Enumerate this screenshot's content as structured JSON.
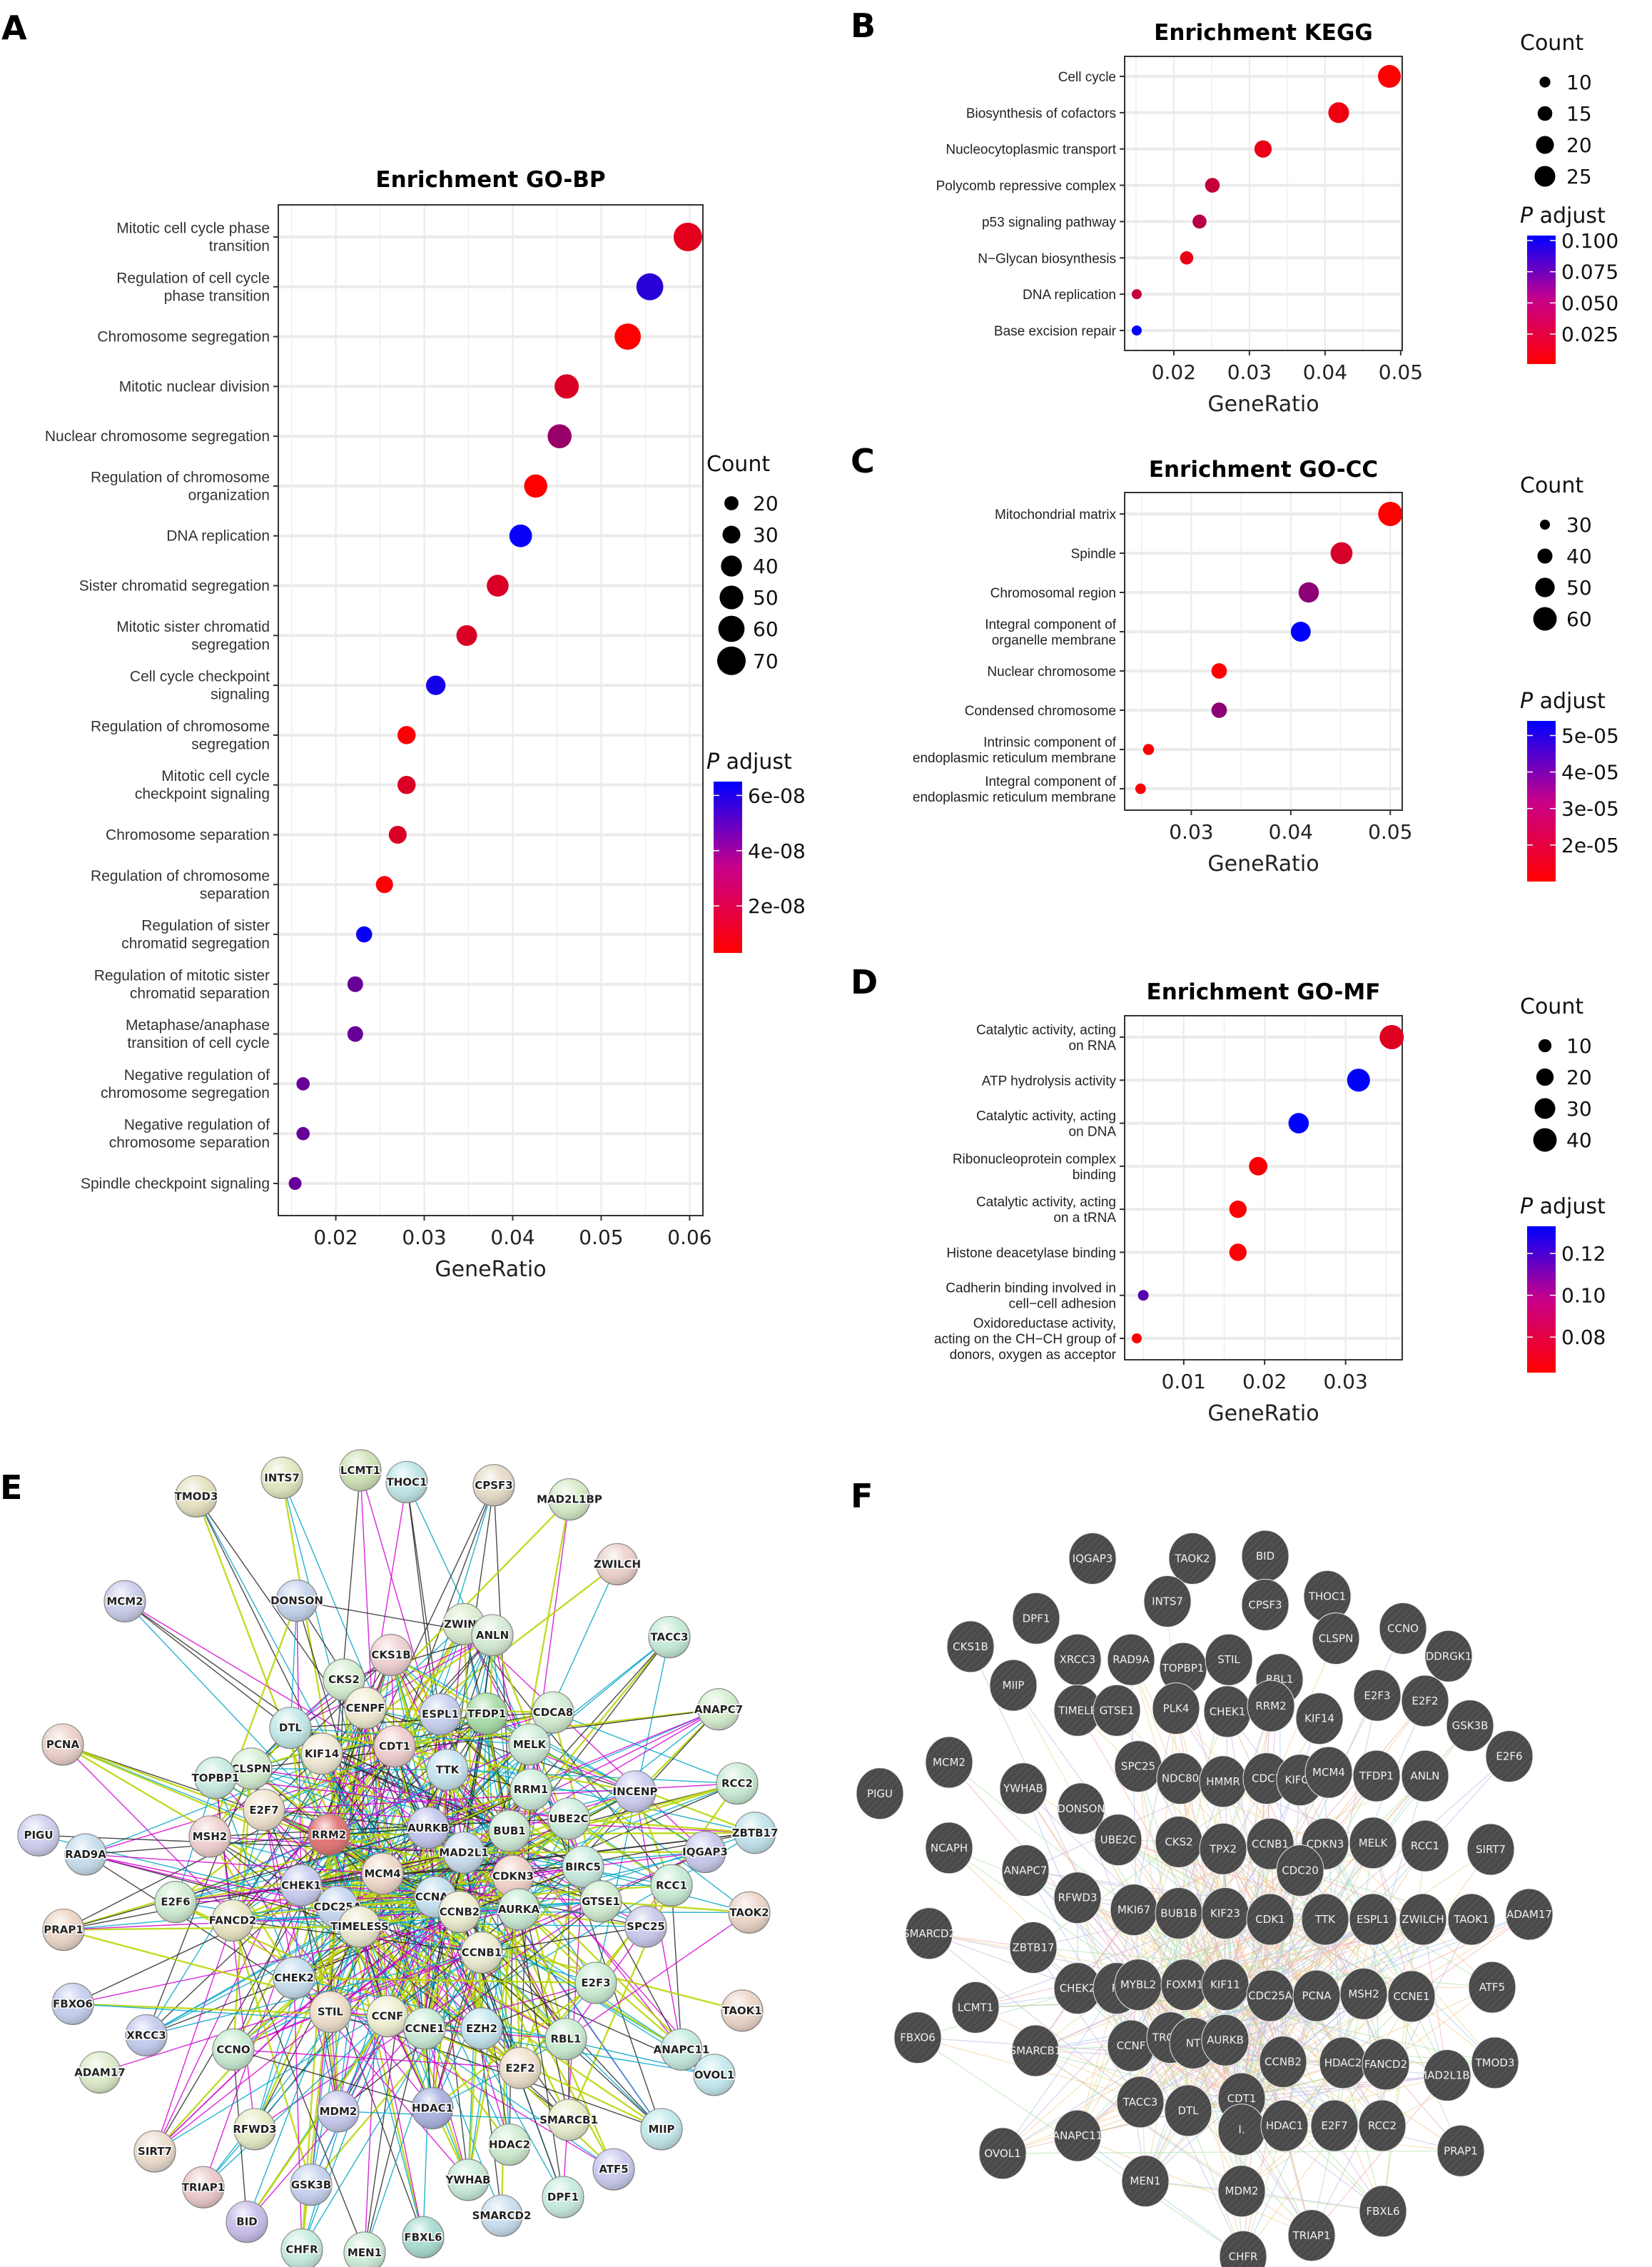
{
  "figure": {
    "panels": [
      "A",
      "B",
      "C",
      "D",
      "E",
      "F"
    ]
  },
  "chart_data": [
    {
      "id": "A",
      "type": "scatter",
      "title": "Enrichment GO-BP",
      "xlabel": "GeneRatio",
      "ylabel": "",
      "xlim": [
        0.0135,
        0.0615
      ],
      "xticks": [
        "0.02",
        "0.03",
        "0.04",
        "0.05",
        "0.06"
      ],
      "xtick_values": [
        0.02,
        0.03,
        0.04,
        0.05,
        0.06
      ],
      "grid": true,
      "size_legend": {
        "title": "Count",
        "values": [
          20,
          30,
          40,
          50,
          60,
          70
        ],
        "labels": [
          "20",
          "30",
          "40",
          "50",
          "60",
          "70"
        ]
      },
      "color_legend": {
        "title_italic": "P",
        "title_rest": " adjust",
        "range": [
          3e-09,
          6.5e-08
        ],
        "ticks": [
          6e-08,
          4e-08,
          2e-08
        ],
        "labels": [
          "6e-08",
          "4e-08",
          "2e-08"
        ],
        "low_color": "#ff0000",
        "high_color": "#0000ff"
      },
      "categories": [
        [
          "Mitotic cell cycle phase",
          "transition"
        ],
        [
          "Regulation of cell cycle",
          "phase transition"
        ],
        [
          "Chromosome segregation"
        ],
        [
          "Mitotic nuclear division"
        ],
        [
          "Nuclear chromosome segregation"
        ],
        [
          "Regulation of chromosome",
          "organization"
        ],
        [
          "DNA replication"
        ],
        [
          "Sister chromatid segregation"
        ],
        [
          "Mitotic sister chromatid",
          "segregation"
        ],
        [
          "Cell cycle checkpoint",
          "signaling"
        ],
        [
          "Regulation of chromosome",
          "segregation"
        ],
        [
          "Mitotic cell cycle",
          "checkpoint signaling"
        ],
        [
          "Chromosome separation"
        ],
        [
          "Regulation of chromosome",
          "separation"
        ],
        [
          "Regulation of sister",
          "chromatid segregation"
        ],
        [
          "Regulation of mitotic sister",
          "chromatid separation"
        ],
        [
          "Metaphase/anaphase",
          "transition of cell cycle"
        ],
        [
          "Negative regulation of",
          "chromosome segregation"
        ],
        [
          "Negative regulation of",
          "chromosome separation"
        ],
        [
          "Spindle checkpoint signaling"
        ]
      ],
      "gene_ratio": [
        0.0598,
        0.0555,
        0.053,
        0.0461,
        0.0453,
        0.0426,
        0.0409,
        0.0383,
        0.0348,
        0.0313,
        0.028,
        0.028,
        0.027,
        0.0255,
        0.0232,
        0.0222,
        0.0222,
        0.0163,
        0.0163,
        0.0154
      ],
      "count": [
        70,
        63,
        60,
        52,
        51,
        48,
        46,
        43,
        39,
        35,
        31,
        31,
        30,
        28,
        25,
        24,
        24,
        18,
        18,
        17
      ],
      "p_adjust": [
        1e-08,
        5.5e-08,
        3.5e-09,
        1.2e-08,
        2.8e-08,
        3e-09,
        6.3e-08,
        1.2e-08,
        1.2e-08,
        6e-08,
        4e-09,
        1.2e-08,
        1.2e-08,
        4e-09,
        6.3e-08,
        4e-08,
        4e-08,
        4e-08,
        4e-08,
        4e-08
      ]
    },
    {
      "id": "B",
      "type": "scatter",
      "title": "Enrichment KEGG",
      "xlabel": "GeneRatio",
      "xlim": [
        0.0135,
        0.0502
      ],
      "xticks": [
        "0.02",
        "0.03",
        "0.04",
        "0.05"
      ],
      "xtick_values": [
        0.02,
        0.03,
        0.04,
        0.05
      ],
      "grid": true,
      "size_legend": {
        "title": "Count",
        "values": [
          10,
          15,
          20,
          25
        ],
        "labels": [
          "10",
          "15",
          "20",
          "25"
        ]
      },
      "color_legend": {
        "title_italic": "P",
        "title_rest": " adjust",
        "range": [
          0.001,
          0.104
        ],
        "ticks": [
          0.1,
          0.075,
          0.05,
          0.025
        ],
        "labels": [
          "0.100",
          "0.075",
          "0.050",
          "0.025"
        ],
        "low_color": "#ff0000",
        "high_color": "#0000ff"
      },
      "categories": [
        [
          "Cell cycle"
        ],
        [
          "Biosynthesis of cofactors"
        ],
        [
          "Nucleocytoplasmic transport"
        ],
        [
          "Polycomb repressive complex"
        ],
        [
          "p53 signaling pathway"
        ],
        [
          "N−Glycan biosynthesis"
        ],
        [
          "DNA replication"
        ],
        [
          "Base excision repair"
        ]
      ],
      "gene_ratio": [
        0.0485,
        0.0418,
        0.0318,
        0.0251,
        0.0234,
        0.0217,
        0.0151,
        0.0151
      ],
      "count": [
        29,
        25,
        19,
        15,
        14,
        13,
        9,
        9
      ],
      "p_adjust": [
        0.002,
        0.008,
        0.01,
        0.025,
        0.03,
        0.01,
        0.025,
        0.104
      ]
    },
    {
      "id": "C",
      "type": "scatter",
      "title": "Enrichment GO-CC",
      "xlabel": "GeneRatio",
      "xlim": [
        0.0233,
        0.0512
      ],
      "xticks": [
        "0.03",
        "0.04",
        "0.05"
      ],
      "xtick_values": [
        0.03,
        0.04,
        0.05
      ],
      "grid": true,
      "size_legend": {
        "title": "Count",
        "values": [
          30,
          40,
          50,
          60
        ],
        "labels": [
          "30",
          "40",
          "50",
          "60"
        ]
      },
      "color_legend": {
        "title_italic": "P",
        "title_rest": " adjust",
        "range": [
          1e-05,
          5.4e-05
        ],
        "ticks": [
          5e-05,
          4e-05,
          3e-05,
          2e-05
        ],
        "labels": [
          "5e-05",
          "4e-05",
          "3e-05",
          "2e-05"
        ],
        "low_color": "#ff0000",
        "high_color": "#0000ff"
      },
      "categories": [
        [
          "Mitochondrial matrix"
        ],
        [
          "Spindle"
        ],
        [
          "Chromosomal region"
        ],
        [
          "Integral component of",
          "organelle membrane"
        ],
        [
          "Nuclear chromosome"
        ],
        [
          "Condensed chromosome"
        ],
        [
          "Intrinsic component of",
          "endoplasmic reticulum membrane"
        ],
        [
          "Integral component of",
          "endoplasmic reticulum membrane"
        ]
      ],
      "gene_ratio": [
        0.05,
        0.0451,
        0.0418,
        0.041,
        0.0328,
        0.0328,
        0.0257,
        0.0249
      ],
      "count": [
        62,
        56,
        52,
        51,
        41,
        41,
        32,
        31
      ],
      "p_adjust": [
        1e-05,
        1.7e-05,
        3e-05,
        5.4e-05,
        1e-05,
        3e-05,
        1.1e-05,
        1.1e-05
      ]
    },
    {
      "id": "D",
      "type": "scatter",
      "title": "Enrichment GO-MF",
      "xlabel": "GeneRatio",
      "xlim": [
        0.0027,
        0.037
      ],
      "xticks": [
        "0.01",
        "0.02",
        "0.03"
      ],
      "xtick_values": [
        0.01,
        0.02,
        0.03
      ],
      "grid": true,
      "size_legend": {
        "title": "Count",
        "values": [
          10,
          20,
          30,
          40
        ],
        "labels": [
          "10",
          "20",
          "30",
          "40"
        ]
      },
      "color_legend": {
        "title_italic": "P",
        "title_rest": " adjust",
        "range": [
          0.063,
          0.133
        ],
        "ticks": [
          0.12,
          0.1,
          0.08
        ],
        "labels": [
          "0.12",
          "0.10",
          "0.08"
        ],
        "low_color": "#ff0000",
        "high_color": "#0000ff"
      },
      "categories": [
        [
          "Catalytic activity, acting",
          "on RNA"
        ],
        [
          "ATP hydrolysis activity"
        ],
        [
          "Catalytic activity, acting",
          "on DNA"
        ],
        [
          "Ribonucleoprotein complex",
          "binding"
        ],
        [
          "Catalytic activity, acting",
          "on a tRNA"
        ],
        [
          "Histone deacetylase binding"
        ],
        [
          "Cadherin binding involved in",
          "cell−cell adhesion"
        ],
        [
          "Oxidoreductase activity,",
          "acting on the CH−CH group of",
          "donors, oxygen as acceptor"
        ]
      ],
      "gene_ratio": [
        0.0357,
        0.0316,
        0.0242,
        0.0192,
        0.0167,
        0.0167,
        0.005,
        0.0042
      ],
      "count": [
        43,
        38,
        29,
        23,
        20,
        20,
        6,
        5
      ],
      "p_adjust": [
        0.072,
        0.133,
        0.133,
        0.065,
        0.064,
        0.064,
        0.11,
        0.064
      ]
    }
  ],
  "network_e": {
    "label": "E",
    "edge_colors": [
      "#b8d400",
      "#2b2b2b",
      "#d400d4",
      "#00a6c8",
      "#3fb53f",
      "#ff0000",
      "#5560d0"
    ],
    "nodes": [
      {
        "name": "INTS7",
        "color": "#e2e8c0"
      },
      {
        "name": "LCMT1",
        "color": "#cfe3b6"
      },
      {
        "name": "THOC1",
        "color": "#bfe6e6"
      },
      {
        "name": "TMOD3",
        "color": "#e6e2bf"
      },
      {
        "name": "CPSF3",
        "color": "#e6dbc6"
      },
      {
        "name": "MAD2L1BP",
        "color": "#d5ecc7"
      },
      {
        "name": "ZWILCH",
        "color": "#ecd2c9"
      },
      {
        "name": "MCM2",
        "color": "#c9cdeb"
      },
      {
        "name": "DONSON",
        "color": "#c4d4ec"
      },
      {
        "name": "ZWINT",
        "color": "#dbedcf"
      },
      {
        "name": "ANLN",
        "color": "#d6ecd5"
      },
      {
        "name": "TACC3",
        "color": "#c4ecd6"
      },
      {
        "name": "CKS1B",
        "color": "#f0d0d0"
      },
      {
        "name": "CKS2",
        "color": "#d6efd1"
      },
      {
        "name": "CENPF",
        "color": "#f0ecd0"
      },
      {
        "name": "ESPL1",
        "color": "#c6d0ef"
      },
      {
        "name": "TFDP1",
        "color": "#a5dca5"
      },
      {
        "name": "CDCA8",
        "color": "#d2ecd0"
      },
      {
        "name": "ANAPC7",
        "color": "#d6efcf"
      },
      {
        "name": "PCNA",
        "color": "#ecd0c9"
      },
      {
        "name": "DTL",
        "color": "#c2e8e8"
      },
      {
        "name": "KIF14",
        "color": "#efe9d4"
      },
      {
        "name": "CDT1",
        "color": "#f0cccc"
      },
      {
        "name": "MELK",
        "color": "#cdecd8"
      },
      {
        "name": "CLSPN",
        "color": "#d4efd0"
      },
      {
        "name": "TTK",
        "color": "#c4e4ef"
      },
      {
        "name": "TOPBP1",
        "color": "#c6ebe1"
      },
      {
        "name": "RRM1",
        "color": "#cdeedd"
      },
      {
        "name": "INCENP",
        "color": "#cccdef"
      },
      {
        "name": "RCC2",
        "color": "#c8ebd2"
      },
      {
        "name": "E2F7",
        "color": "#efe3cc"
      },
      {
        "name": "PIGU",
        "color": "#cdcfef"
      },
      {
        "name": "MSH2",
        "color": "#f0cfcf"
      },
      {
        "name": "RRM2",
        "color": "#e07070"
      },
      {
        "name": "AURKB",
        "color": "#c3c6ef"
      },
      {
        "name": "BUB1",
        "color": "#cdecd5"
      },
      {
        "name": "UBE2C",
        "color": "#cdeede"
      },
      {
        "name": "MAD2L1",
        "color": "#c9dcef"
      },
      {
        "name": "ZBTB17",
        "color": "#c1e3ec"
      },
      {
        "name": "IQGAP3",
        "color": "#c6c8ec"
      },
      {
        "name": "BIRC5",
        "color": "#c7ecde"
      },
      {
        "name": "RAD9A",
        "color": "#c6dded"
      },
      {
        "name": "MCM4",
        "color": "#f0d8c8"
      },
      {
        "name": "CDKN3",
        "color": "#f0d2c8"
      },
      {
        "name": "CHEK1",
        "color": "#c8cbef"
      },
      {
        "name": "CCNA2",
        "color": "#c2dfef"
      },
      {
        "name": "RCC1",
        "color": "#c8ecd6"
      },
      {
        "name": "E2F6",
        "color": "#cfecd2"
      },
      {
        "name": "CDC25A",
        "color": "#c4d6ef"
      },
      {
        "name": "GTSE1",
        "color": "#d0ecd0"
      },
      {
        "name": "FANCD2",
        "color": "#e9e6c4"
      },
      {
        "name": "TIMELESS",
        "color": "#ece9cf"
      },
      {
        "name": "CCNB2",
        "color": "#eeeed0"
      },
      {
        "name": "AURKA",
        "color": "#c8ecd4"
      },
      {
        "name": "TAOK2",
        "color": "#ecd6c8"
      },
      {
        "name": "PRAP1",
        "color": "#ecd6c6"
      },
      {
        "name": "SPC25",
        "color": "#c8c8ec"
      },
      {
        "name": "CCNB1",
        "color": "#ececd0"
      },
      {
        "name": "CHEK2",
        "color": "#c6def0"
      },
      {
        "name": "E2F3",
        "color": "#caedd2"
      },
      {
        "name": "FBXO6",
        "color": "#c6d0ef"
      },
      {
        "name": "STIL",
        "color": "#efdfca"
      },
      {
        "name": "CCNF",
        "color": "#eeeecf"
      },
      {
        "name": "CCNE1",
        "color": "#caecd6"
      },
      {
        "name": "EZH2",
        "color": "#c4e6ef"
      },
      {
        "name": "TAOK1",
        "color": "#ecd6c8"
      },
      {
        "name": "XRCC3",
        "color": "#c4cbef"
      },
      {
        "name": "RBL1",
        "color": "#caecd2"
      },
      {
        "name": "CCNO",
        "color": "#c8ecd2"
      },
      {
        "name": "ANAPC11",
        "color": "#c6ece0"
      },
      {
        "name": "ADAM17",
        "color": "#deecc9"
      },
      {
        "name": "E2F2",
        "color": "#efe0cc"
      },
      {
        "name": "OVOL1",
        "color": "#c4eaef"
      },
      {
        "name": "MDM2",
        "color": "#c6c9ef"
      },
      {
        "name": "HDAC1",
        "color": "#a9b2e0"
      },
      {
        "name": "RFWD3",
        "color": "#e6ecc6"
      },
      {
        "name": "SMARCB1",
        "color": "#e9eecb"
      },
      {
        "name": "MIIP",
        "color": "#c2e9ec"
      },
      {
        "name": "HDAC2",
        "color": "#ceeccf"
      },
      {
        "name": "SIRT7",
        "color": "#ecdccb"
      },
      {
        "name": "ATF5",
        "color": "#c9c9ef"
      },
      {
        "name": "YWHAB",
        "color": "#c8ecd8"
      },
      {
        "name": "TRIAP1",
        "color": "#ecc9c9"
      },
      {
        "name": "GSK3B",
        "color": "#c6d2ef"
      },
      {
        "name": "DPF1",
        "color": "#c8ece0"
      },
      {
        "name": "SMARCD2",
        "color": "#c8def0"
      },
      {
        "name": "BID",
        "color": "#c8bdea"
      },
      {
        "name": "CHFR",
        "color": "#c6ece0"
      },
      {
        "name": "MEN1",
        "color": "#ccecd6"
      },
      {
        "name": "FBXL6",
        "color": "#a8dcd2"
      }
    ]
  },
  "network_f": {
    "label": "F",
    "node_color": "#4a4a4a",
    "label_color": "#f0f0f0",
    "edge_colors": [
      "#f4a6a6",
      "#c9b3e0",
      "#f7c98b",
      "#9ec6ef",
      "#a8e0a0",
      "#e6d690"
    ],
    "nodes": [
      "IQGAP3",
      "TAOK2",
      "BID",
      "THOC1",
      "INTS7",
      "CPSF3",
      "DPF1",
      "CLSPN",
      "CCNO",
      "DDRGK1",
      "CKS1B",
      "XRCC3",
      "RAD9A",
      "TOPBP1",
      "STIL",
      "RBL1",
      "MIIP",
      "TIMELESS",
      "GTSE1",
      "PLK4",
      "CHEK1",
      "RRM2",
      "KIF14",
      "E2F3",
      "E2F2",
      "GSK3B",
      "E2F6",
      "PIGU",
      "MCM2",
      "YWHAB",
      "SPC25",
      "NDC80",
      "HMMR",
      "CDC7",
      "KIFC1",
      "MCM4",
      "TFDP1",
      "ANLN",
      "DONSON",
      "NCAPH",
      "UBE2C",
      "CKS2",
      "TPX2",
      "CCNB1",
      "CDKN3",
      "MELK",
      "RCC1",
      "SIRT7",
      "CDC20",
      "ANAPC7",
      "RFWD3",
      "MKI67",
      "BUB1B",
      "KIF23",
      "CDK1",
      "TTK",
      "ESPL1",
      "ZWILCH",
      "TAOK1",
      "ADAM17",
      "SMARCD2",
      "ZBTB17",
      "CHEK2",
      "RRM1",
      "MYBL2",
      "FOXM1",
      "KIF11",
      "CDC25A",
      "PCNA",
      "MSH2",
      "CCNE1",
      "ATF5",
      "LCMT1",
      "FBXO6",
      "SMARCB1",
      "CCNF",
      "TROAP",
      "ZWINT",
      "AURKB",
      "CCNB2",
      "HDAC2",
      "FANCD2",
      "MAD2L1BP",
      "TMOD3",
      "TACC3",
      "DTL",
      "CDT1",
      "INCENP",
      "HDAC1",
      "E2F7",
      "RCC2",
      "PRAP1",
      "OVOL1",
      "ANAPC11",
      "MEN1",
      "MDM2",
      "FBXL6",
      "CHFR",
      "TRIAP1"
    ],
    "display_labels": {
      "TIMELESS": "TIMELE",
      "CDC7": "CDC7",
      "TROAP": "TROAP",
      "ZWINT": "NT",
      "RRM1": "R.",
      "INCENP": "I.",
      "MCM4": "MCM4"
    }
  }
}
